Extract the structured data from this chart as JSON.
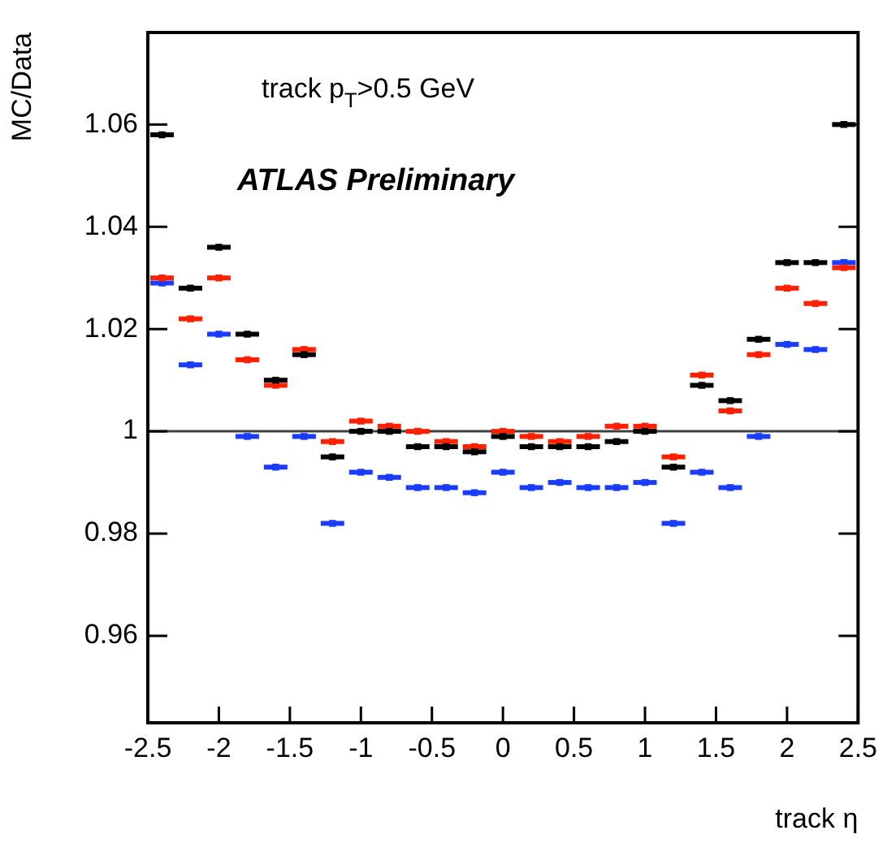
{
  "chart_data": {
    "type": "scatter",
    "xlabel": "track η",
    "ylabel": "MC/Data",
    "annotations": [
      "track p$_{T}$>0.5 GeV",
      "ATLAS Preliminary"
    ],
    "x": [
      -2.4,
      -2.2,
      -2.0,
      -1.8,
      -1.6,
      -1.4,
      -1.2,
      -1.0,
      -0.8,
      -0.6,
      -0.4,
      -0.2,
      0.0,
      0.2,
      0.4,
      0.6,
      0.8,
      1.0,
      1.2,
      1.4,
      1.6,
      1.8,
      2.0,
      2.2,
      2.4
    ],
    "series": [
      {
        "color": "#000000",
        "values": [
          1.058,
          1.028,
          1.036,
          1.019,
          1.01,
          1.015,
          0.995,
          1.0,
          1.0,
          0.997,
          0.997,
          0.996,
          0.999,
          0.997,
          0.997,
          0.997,
          0.998,
          1.0,
          0.993,
          1.009,
          1.006,
          1.018,
          1.033,
          1.033,
          1.06
        ],
        "xerrors": [
          0.1,
          0.1,
          0.1,
          0.1,
          0.1,
          0.1,
          0.1,
          0.1,
          0.1,
          0.1,
          0.1,
          0.1,
          0.1,
          0.1,
          0.1,
          0.1,
          0.1,
          0.1,
          0.1,
          0.1,
          0.1,
          0.1,
          0.1,
          0.1,
          0.1
        ]
      },
      {
        "color": "#ff2000",
        "values": [
          1.03,
          1.022,
          1.03,
          1.014,
          1.009,
          1.016,
          0.998,
          1.002,
          1.001,
          1.0,
          0.998,
          0.997,
          1.0,
          0.999,
          0.998,
          0.999,
          1.001,
          1.001,
          0.995,
          1.011,
          1.004,
          1.015,
          1.028,
          1.025,
          1.032
        ],
        "xerrors": [
          0.1,
          0.1,
          0.1,
          0.1,
          0.1,
          0.1,
          0.1,
          0.1,
          0.1,
          0.1,
          0.1,
          0.1,
          0.1,
          0.1,
          0.1,
          0.1,
          0.1,
          0.1,
          0.1,
          0.1,
          0.1,
          0.1,
          0.1,
          0.1,
          0.1
        ]
      },
      {
        "color": "#1a3cff",
        "values": [
          1.029,
          1.013,
          1.019,
          0.999,
          0.993,
          0.999,
          0.982,
          0.992,
          0.991,
          0.989,
          0.989,
          0.988,
          0.992,
          0.989,
          0.99,
          0.989,
          0.989,
          0.99,
          0.982,
          0.992,
          0.989,
          0.999,
          1.017,
          1.016,
          1.033
        ],
        "xerrors": [
          0.1,
          0.1,
          0.1,
          0.1,
          0.1,
          0.1,
          0.1,
          0.1,
          0.1,
          0.1,
          0.1,
          0.1,
          0.1,
          0.1,
          0.1,
          0.1,
          0.1,
          0.1,
          0.1,
          0.1,
          0.1,
          0.1,
          0.1,
          0.1,
          0.1
        ]
      }
    ],
    "marker": "square",
    "grid": false,
    "legend": false,
    "xlim": [
      -2.5,
      2.5
    ],
    "xticks": [
      -2.5,
      -2,
      -1.5,
      -1,
      -0.5,
      0,
      0.5,
      1,
      1.5,
      2,
      2.5
    ],
    "ylim": [
      0.943,
      1.078
    ],
    "yticks": [
      0.96,
      0.98,
      1,
      1.02,
      1.04,
      1.06
    ],
    "ref_lines": [
      {
        "axis": "y",
        "value": 1,
        "color": "#404040"
      }
    ]
  }
}
